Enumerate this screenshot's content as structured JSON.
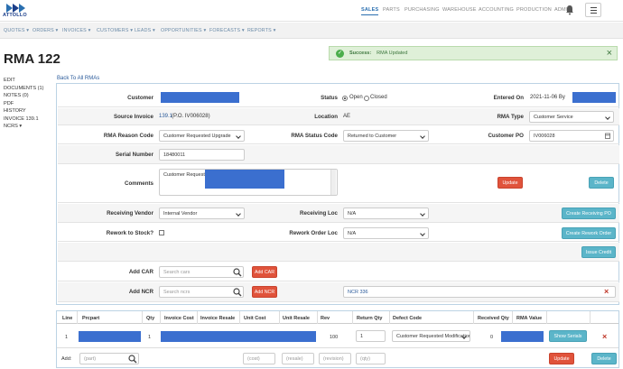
{
  "app": {
    "logo_text": "ATTOLLO"
  },
  "top_nav": [
    {
      "label": "SALES",
      "active": true
    },
    {
      "label": "PARTS"
    },
    {
      "label": "PURCHASING"
    },
    {
      "label": "WAREHOUSE"
    },
    {
      "label": "ACCOUNTING"
    },
    {
      "label": "PRODUCTION"
    },
    {
      "label": "ADMIN"
    }
  ],
  "sub_nav": [
    "QUOTES ▾",
    "ORDERS ▾",
    "INVOICES ▾",
    "CUSTOMERS ▾",
    "LEADS ▾",
    "OPPORTUNITIES ▾",
    "FORECASTS ▾",
    "REPORTS ▾"
  ],
  "page_title": "RMA 122",
  "toast": {
    "title": "Success:",
    "message": "RMA Updated",
    "close": "×"
  },
  "sidebar": [
    "EDIT",
    "DOCUMENTS (1)",
    "NOTES (0)",
    "PDF",
    "HISTORY",
    "INVOICE 139.1",
    "NCRS ▾"
  ],
  "back_link": "Back To All RMAs",
  "form": {
    "customer_label": "Customer",
    "status_label": "Status",
    "status_open": "Open",
    "status_closed": "Closed",
    "entered_on_label": "Entered On",
    "entered_on_value": "2021-11-06 By",
    "source_invoice_label": "Source Invoice",
    "source_invoice_link": "139.1",
    "source_invoice_po": "(P.O. IV006028)",
    "location_label": "Location",
    "location_value": "AE",
    "rma_type_label": "RMA Type",
    "rma_type_value": "Customer Service",
    "reason_code_label": "RMA Reason Code",
    "reason_code_value": "Customer Requested Upgrade",
    "status_code_label": "RMA Status Code",
    "status_code_value": "Returned to Customer",
    "customer_po_label": "Customer PO",
    "customer_po_value": "IV006028",
    "serial_label": "Serial Number",
    "serial_value": "18480011",
    "comments_label": "Comments",
    "comments_value": "Customer Requesting",
    "update_label": "Update",
    "delete_label": "Delete",
    "receiving_vendor_label": "Receiving Vendor",
    "receiving_vendor_value": "Internal Vendor",
    "receiving_loc_label": "Receiving Loc",
    "receiving_loc_value": "N/A",
    "create_receiving_po": "Create Receiving PO",
    "rework_label": "Rework to Stock?",
    "rework_order_loc_label": "Rework Order Loc",
    "rework_order_loc_value": "N/A",
    "create_rework_order": "Create Rework Order",
    "issue_credit": "Issue Credit",
    "add_car_label": "Add CAR",
    "add_car_placeholder": "Search cars",
    "add_car_button": "Add CAR",
    "add_ncr_label": "Add NCR",
    "add_ncr_placeholder": "Search ncrs",
    "add_ncr_button": "Add NCR",
    "ncr_value": "NCR 336",
    "ncr_remove": "×"
  },
  "table": {
    "headers": [
      "Line",
      "Prcpart",
      "Qty",
      "Invoice Cost",
      "Invoice Resale",
      "Unit Cost",
      "Unit Resale",
      "Rev",
      "Return Qty",
      "Defect Code",
      "Received Qty",
      "RMA Value"
    ],
    "row": {
      "line": "1",
      "qty": "1",
      "rev": "100",
      "return_qty": "1",
      "defect_code": "Customer Requested Modification",
      "received_qty": "0",
      "show_serials": "Show Serials",
      "remove": "×"
    },
    "add_row": {
      "label": "Add:",
      "part_placeholder": "(part)",
      "cost_placeholder": "(cost)",
      "resale_placeholder": "(resale)",
      "revision_placeholder": "(revision)",
      "qty_placeholder": "(qty)",
      "update": "Update",
      "delete": "Delete"
    }
  }
}
